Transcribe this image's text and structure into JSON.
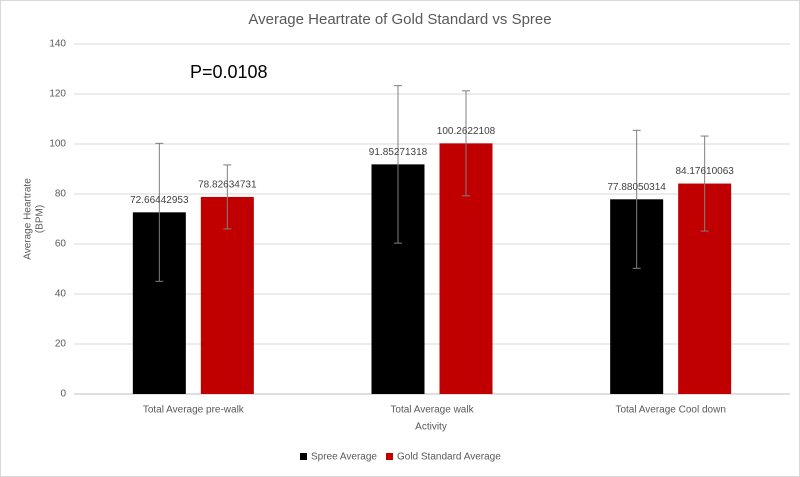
{
  "chart_data": {
    "type": "bar",
    "title": "Average Heartrate of Gold Standard vs Spree",
    "x_label": "Activity",
    "y_label": [
      "Average Heartrate",
      "(BPM)"
    ],
    "annotation": "P=0.0108",
    "categories": [
      "Total Average pre-walk",
      "Total Average walk",
      "Total Average Cool down"
    ],
    "series": [
      {
        "name": "Spree Average",
        "color": "#000000",
        "values": [
          72.66442953,
          91.85271318,
          77.88050314
        ],
        "errors": [
          27.6,
          31.5,
          27.6
        ]
      },
      {
        "name": "Gold Standard Average",
        "color": "#c00000",
        "values": [
          78.82634731,
          100.2622108,
          84.17610063
        ],
        "errors": [
          12.8,
          21,
          19
        ]
      }
    ],
    "ylim": [
      0,
      140
    ],
    "yticks": [
      0,
      20,
      40,
      60,
      80,
      100,
      120,
      140
    ],
    "grid": true,
    "legend": "bottom"
  }
}
